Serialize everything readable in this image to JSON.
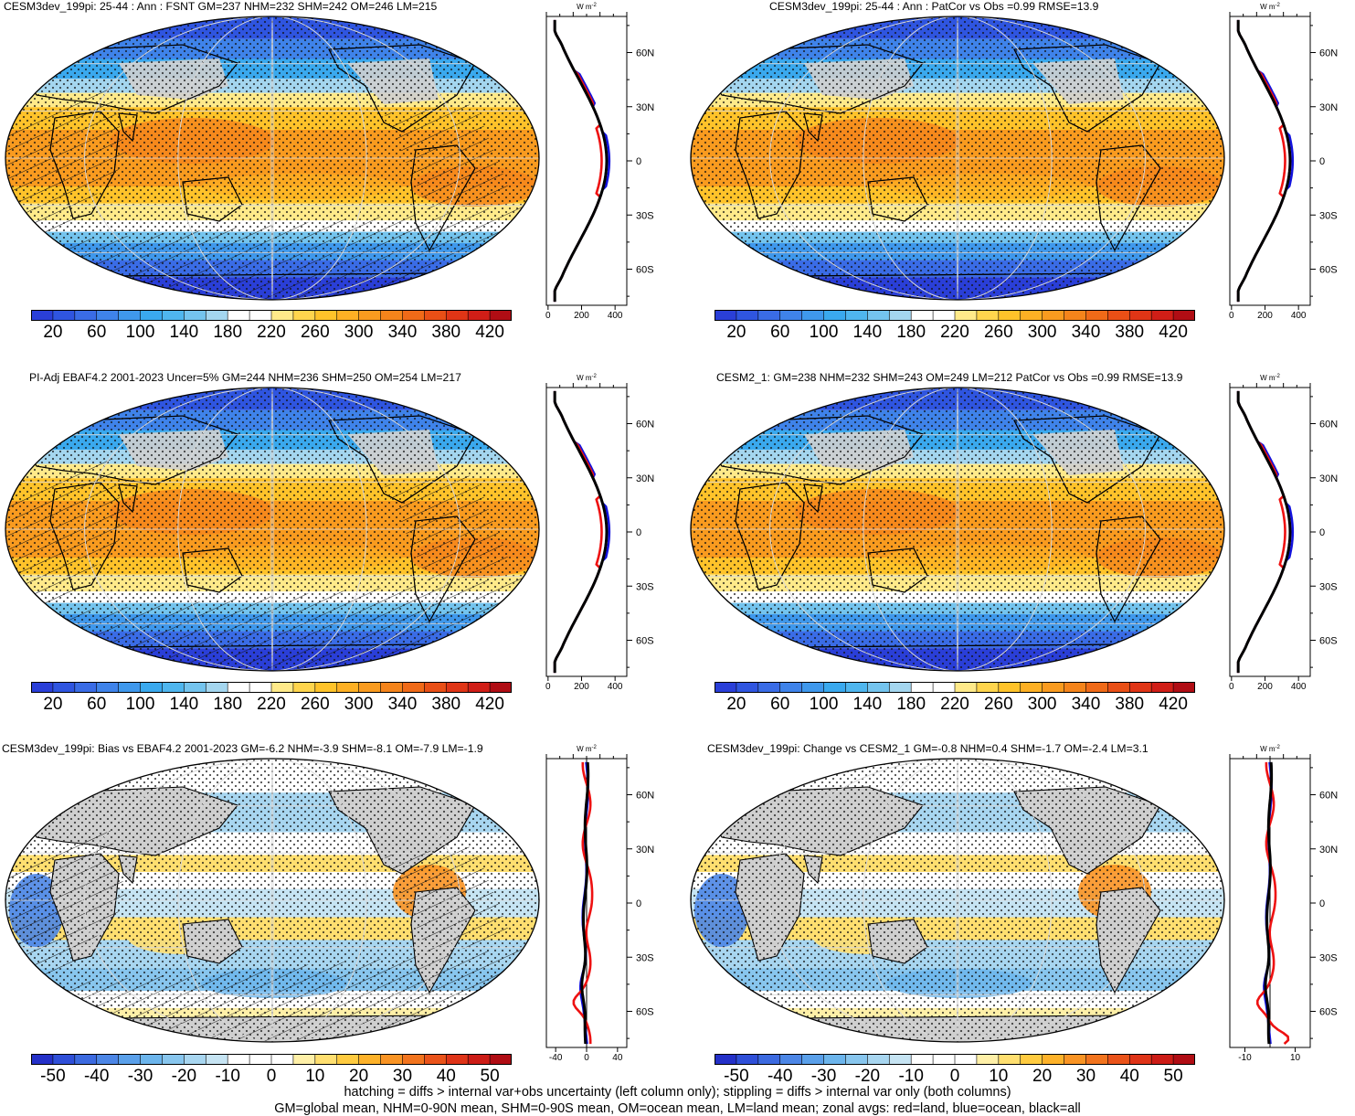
{
  "colormaps": {
    "abs": [
      "#2a3fd8",
      "#2f55e0",
      "#3a6ce6",
      "#3f83ea",
      "#3f98ec",
      "#3aa9ee",
      "#4fb6ee",
      "#74c4ee",
      "#a4d6ef",
      "#ffffff",
      "#ffffff",
      "#ffea8a",
      "#ffd54d",
      "#ffc32a",
      "#fdb024",
      "#f99b1f",
      "#f5841b",
      "#f06a18",
      "#e94f16",
      "#e03516",
      "#d01e17",
      "#b00d14"
    ],
    "diff": [
      "#2430c8",
      "#2f4fd8",
      "#3c6ae0",
      "#4c86e6",
      "#5aa0ea",
      "#6cb5ec",
      "#88c6ee",
      "#a8d6f0",
      "#c6e4f3",
      "#ffffff",
      "#ffffff",
      "#ffffff",
      "#fff0a8",
      "#ffdf70",
      "#ffcb40",
      "#fdb22a",
      "#f99424",
      "#f2741e",
      "#ea531a",
      "#df3418",
      "#cc1c16",
      "#b00d14"
    ]
  },
  "land_color": "#cfcfcf",
  "zonal_colors": {
    "land": "#ee1111",
    "ocean": "#1111dd",
    "all": "#000000"
  },
  "panels": [
    {
      "id": "p1",
      "title": "CESM3dev_199pi: 25-44 : Ann : FSNT GM=237 NHM=232 SHM=242 OM=246 LM=215",
      "type": "abs",
      "hatch": true,
      "colorbar_labels": [
        "20",
        "60",
        "100",
        "140",
        "180",
        "220",
        "260",
        "300",
        "340",
        "380",
        "420"
      ],
      "zonal": {
        "unit": "W m-2",
        "xticks": [
          "0",
          "200",
          "400"
        ],
        "xvals": [
          0,
          200,
          400
        ],
        "xlim": [
          -10,
          470
        ],
        "lat_labels": [
          "60N",
          "30N",
          "0",
          "30S",
          "60S"
        ]
      }
    },
    {
      "id": "p2",
      "title": "CESM3dev_199pi: 25-44 : Ann : PatCor vs Obs =0.99 RMSE=13.9",
      "type": "abs",
      "hatch": false,
      "colorbar_labels": [
        "20",
        "60",
        "100",
        "140",
        "180",
        "220",
        "260",
        "300",
        "340",
        "380",
        "420"
      ],
      "zonal": {
        "unit": "W m-2",
        "xticks": [
          "0",
          "200",
          "400"
        ],
        "xvals": [
          0,
          200,
          400
        ],
        "xlim": [
          -10,
          470
        ],
        "lat_labels": [
          "60N",
          "30N",
          "0",
          "30S",
          "60S"
        ]
      }
    },
    {
      "id": "p3",
      "title": "PI-Adj EBAF4.2 2001-2023 Uncer=5% GM=244 NHM=236 SHM=250 OM=254 LM=217",
      "type": "abs",
      "hatch": true,
      "colorbar_labels": [
        "20",
        "60",
        "100",
        "140",
        "180",
        "220",
        "260",
        "300",
        "340",
        "380",
        "420"
      ],
      "zonal": {
        "unit": "W m-2",
        "xticks": [
          "0",
          "200",
          "400"
        ],
        "xvals": [
          0,
          200,
          400
        ],
        "xlim": [
          -10,
          470
        ],
        "lat_labels": [
          "60N",
          "30N",
          "0",
          "30S",
          "60S"
        ]
      }
    },
    {
      "id": "p4",
      "title": "CESM2_1: GM=238 NHM=232 SHM=243 OM=249 LM=212 PatCor vs Obs =0.99 RMSE=13.9",
      "type": "abs",
      "hatch": false,
      "colorbar_labels": [
        "20",
        "60",
        "100",
        "140",
        "180",
        "220",
        "260",
        "300",
        "340",
        "380",
        "420"
      ],
      "zonal": {
        "unit": "W m-2",
        "xticks": [
          "0",
          "200",
          "400"
        ],
        "xvals": [
          0,
          200,
          400
        ],
        "xlim": [
          -10,
          470
        ],
        "lat_labels": [
          "60N",
          "30N",
          "0",
          "30S",
          "60S"
        ]
      }
    },
    {
      "id": "p5",
      "title": "CESM3dev_199pi: Bias vs EBAF4.2 2001-2023 GM=-6.2 NHM=-3.9 SHM=-8.1 OM=-7.9 LM=-1.9",
      "type": "diff",
      "hatch": true,
      "colorbar_labels": [
        "-50",
        "-40",
        "-30",
        "-20",
        "-10",
        "0",
        "10",
        "20",
        "30",
        "40",
        "50"
      ],
      "zonal": {
        "unit": "W m-2",
        "xticks": [
          "-40",
          "0",
          "40"
        ],
        "xvals": [
          -40,
          0,
          40
        ],
        "xlim": [
          -52,
          52
        ],
        "lat_labels": [
          "60N",
          "30N",
          "0",
          "30S",
          "60S"
        ]
      }
    },
    {
      "id": "p6",
      "title": "CESM3dev_199pi: Change vs CESM2_1 GM=-0.8 NHM=0.4 SHM=-1.7 OM=-2.4 LM=3.1",
      "type": "diff",
      "hatch": false,
      "colorbar_labels": [
        "-50",
        "-40",
        "-30",
        "-20",
        "-10",
        "0",
        "10",
        "20",
        "30",
        "40",
        "50"
      ],
      "zonal": {
        "unit": "W m-2",
        "xticks": [
          "-10",
          "10"
        ],
        "xvals": [
          -10,
          10
        ],
        "xlim": [
          -16,
          16
        ],
        "lat_labels": [
          "60N",
          "30N",
          "0",
          "30S",
          "60S"
        ]
      }
    }
  ],
  "footer": {
    "line1": "hatching = diffs > internal var+obs uncertainty (left column only); stippling = diffs > internal var only (both columns)",
    "line2": "GM=global mean, NHM=0-90N mean, SHM=0-90S mean, OM=ocean mean, LM=land mean; zonal avgs: red=land, blue=ocean, black=all"
  }
}
